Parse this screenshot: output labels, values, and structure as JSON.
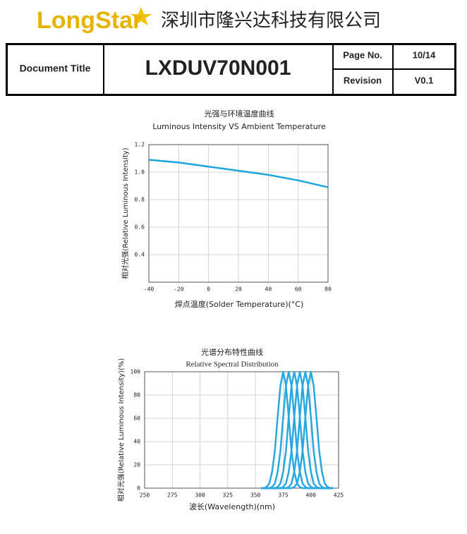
{
  "header": {
    "logo": "LongStar",
    "company": "深圳市隆兴达科技有限公司"
  },
  "doc_table": {
    "title_label": "Document Title",
    "title": "LXDUV70N001",
    "page_label": "Page No.",
    "page": "10/14",
    "revision_label": "Revision",
    "revision": "V0.1"
  },
  "chart_data": [
    {
      "type": "line",
      "title": "光强与环境温度曲线",
      "subtitle": "Luminous Intensity VS Ambient Temperature",
      "x_label": "焊点温度(Solder Temperature)(°C)",
      "y_label": "相对光强(Relative Luminous Intensity)",
      "x": [
        -40,
        -20,
        0,
        20,
        40,
        60,
        80
      ],
      "series": [
        {
          "color": "#1ea6dc",
          "values": [
            1.09,
            1.07,
            1.04,
            1.01,
            0.98,
            0.94,
            0.89
          ]
        }
      ],
      "xlim": [
        -40,
        80
      ],
      "xticks": [
        -40,
        -20,
        0,
        20,
        40,
        60,
        80
      ],
      "ylim": [
        0.2,
        1.2
      ],
      "yticks": [
        0.4,
        0.6,
        0.8,
        {
          "value": 1,
          "label": "1.0"
        },
        1.2
      ],
      "grid": true
    },
    {
      "type": "line",
      "title": "光谱分布特性曲线",
      "subtitle": "Relative Spectral Distribution",
      "x_label": "波长(Wavelength)(nm)",
      "y_label": "相对光强(Relative Luminous Intensity)(%)",
      "x": [
        355,
        357.5,
        360,
        362.5,
        365,
        367.5,
        370,
        372.5,
        375,
        377.5,
        380,
        382.5,
        385,
        387.5,
        390,
        392.5,
        395,
        397.5,
        400,
        402.5,
        405,
        407.5,
        410,
        412.5,
        415,
        417.5,
        420
      ],
      "series": [
        {
          "color": "#29a8e0",
          "values": [
            0,
            0,
            1,
            4,
            14,
            32,
            61,
            88,
            100,
            88,
            61,
            32,
            14,
            4,
            1,
            0,
            0,
            0,
            0,
            0,
            0,
            0,
            0,
            0,
            0,
            0,
            0
          ]
        },
        {
          "color": "#29a8e0",
          "values": [
            0,
            0,
            0,
            0,
            1,
            4,
            14,
            32,
            61,
            88,
            100,
            88,
            61,
            32,
            14,
            4,
            1,
            0,
            0,
            0,
            0,
            0,
            0,
            0,
            0,
            0,
            0
          ]
        },
        {
          "color": "#29a8e0",
          "values": [
            0,
            0,
            0,
            0,
            0,
            0,
            1,
            4,
            14,
            32,
            61,
            88,
            100,
            88,
            61,
            32,
            14,
            4,
            1,
            0,
            0,
            0,
            0,
            0,
            0,
            0,
            0
          ]
        },
        {
          "color": "#29a8e0",
          "values": [
            0,
            0,
            0,
            0,
            0,
            0,
            0,
            0,
            1,
            4,
            14,
            32,
            61,
            88,
            100,
            88,
            61,
            32,
            14,
            4,
            1,
            0,
            0,
            0,
            0,
            0,
            0
          ]
        },
        {
          "color": "#29a8e0",
          "values": [
            0,
            0,
            0,
            0,
            0,
            0,
            0,
            0,
            0,
            0,
            1,
            4,
            14,
            32,
            61,
            88,
            100,
            88,
            61,
            32,
            14,
            4,
            1,
            0,
            0,
            0,
            0
          ]
        },
        {
          "color": "#29a8e0",
          "values": [
            0,
            0,
            0,
            0,
            0,
            0,
            0,
            0,
            0,
            0,
            0,
            0,
            1,
            4,
            14,
            32,
            61,
            88,
            100,
            88,
            61,
            32,
            14,
            4,
            1,
            0,
            0
          ]
        }
      ],
      "xlim": [
        250,
        425
      ],
      "xticks": [
        250,
        275,
        300,
        325,
        350,
        375,
        400,
        425
      ],
      "ylim": [
        0,
        100
      ],
      "yticks": [
        0,
        20,
        40,
        60,
        80,
        100
      ],
      "grid": true
    }
  ]
}
